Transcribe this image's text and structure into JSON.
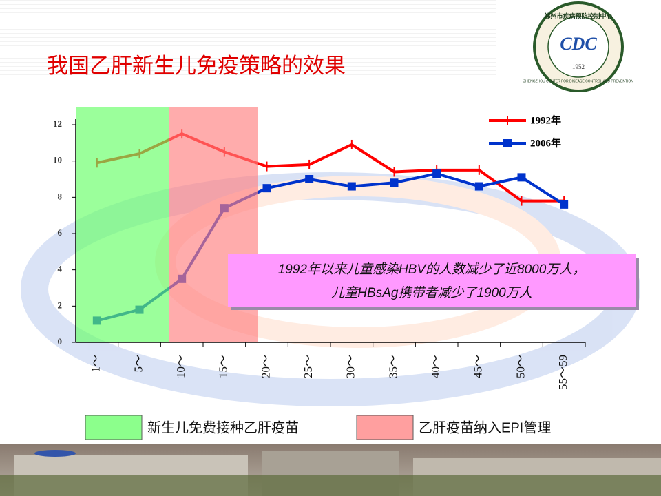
{
  "chart_data": {
    "type": "line",
    "title": "我国乙肝新生儿免疫策略的效果",
    "categories": [
      "1～",
      "5～",
      "10～",
      "15～",
      "20～",
      "25～",
      "30～",
      "35～",
      "40～",
      "45～",
      "50～",
      "55～59"
    ],
    "series": [
      {
        "name": "1992年",
        "color": "#ff0000",
        "marker": "tick",
        "values": [
          9.9,
          10.4,
          11.5,
          10.5,
          9.7,
          9.8,
          10.9,
          9.4,
          9.5,
          9.5,
          7.8,
          7.8
        ]
      },
      {
        "name": "2006年",
        "color": "#0033cc",
        "marker": "square",
        "values": [
          1.2,
          1.8,
          3.5,
          7.4,
          8.5,
          9.0,
          8.6,
          8.8,
          9.3,
          8.6,
          9.1,
          7.6
        ]
      }
    ],
    "ylim": [
      0,
      12
    ],
    "yticks": [
      0,
      2,
      4,
      6,
      8,
      10,
      12
    ],
    "annotation": [
      "1992年以来儿童感染HBV的人数减少了近8000万人，",
      "儿童HBsAg携带者减少了1900万人"
    ],
    "regions": [
      {
        "name": "新生儿免费接种乙肝疫苗",
        "color": "#66ff66"
      },
      {
        "name": "乙肝疫苗纳入EPI管理",
        "color": "#ff8080"
      }
    ]
  },
  "logo": {
    "name_cn": "郑州市疾病预防控制中心",
    "name_en": "ZHENGZHOU CENTER FOR DISEASE CONTROL AND PREVENTION",
    "year": "1952"
  }
}
